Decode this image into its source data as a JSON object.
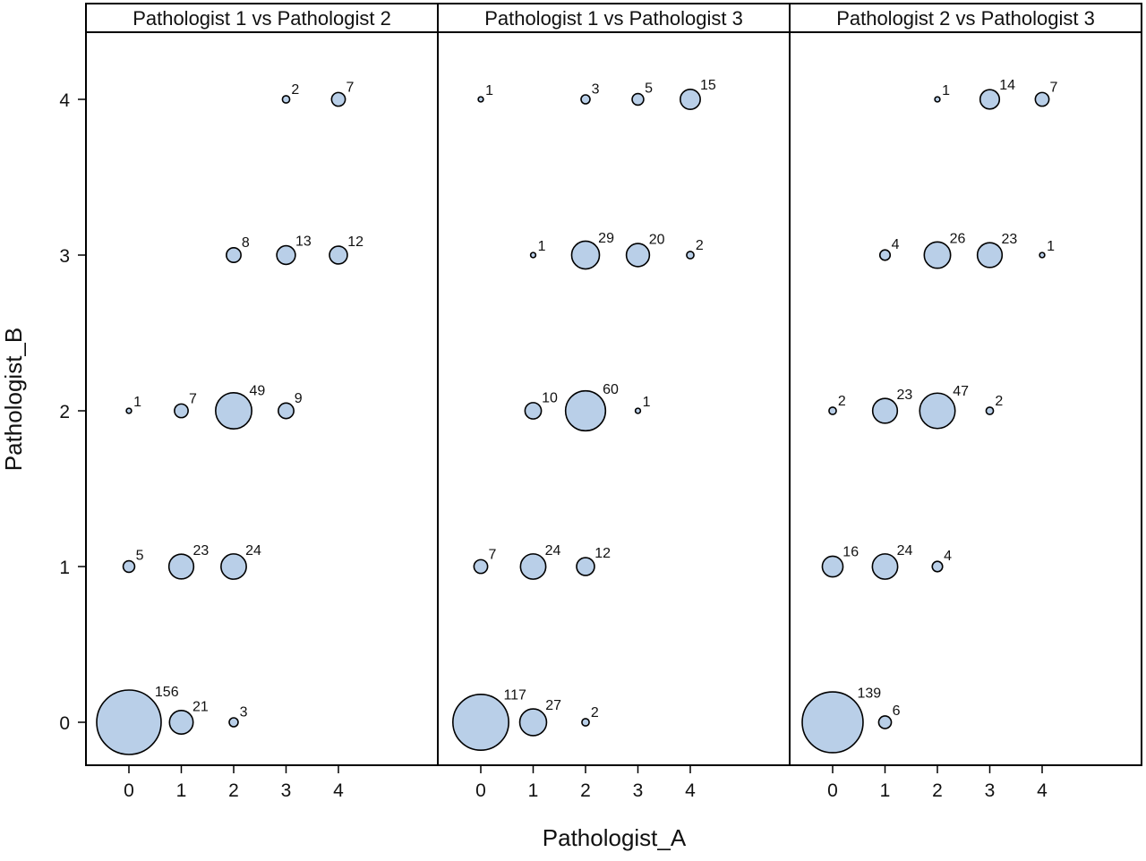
{
  "chart_data": {
    "type": "scatter",
    "xlabel": "Pathologist_A",
    "ylabel": "Pathologist_B",
    "xticks": [
      0,
      1,
      2,
      3,
      4
    ],
    "yticks": [
      0,
      1,
      2,
      3,
      4
    ],
    "xlim": [
      -0.8,
      5.8
    ],
    "ylim": [
      -0.27,
      4.42
    ],
    "bubble_fill": "#b9cfe8",
    "bubble_stroke": "#000000",
    "panels": [
      {
        "title": "Pathologist 1 vs Pathologist 2",
        "points": [
          {
            "x": 3,
            "y": 4,
            "n": 2
          },
          {
            "x": 4,
            "y": 4,
            "n": 7
          },
          {
            "x": 2,
            "y": 3,
            "n": 8
          },
          {
            "x": 3,
            "y": 3,
            "n": 13
          },
          {
            "x": 4,
            "y": 3,
            "n": 12
          },
          {
            "x": 0,
            "y": 2,
            "n": 1
          },
          {
            "x": 1,
            "y": 2,
            "n": 7
          },
          {
            "x": 2,
            "y": 2,
            "n": 49
          },
          {
            "x": 3,
            "y": 2,
            "n": 9
          },
          {
            "x": 0,
            "y": 1,
            "n": 5
          },
          {
            "x": 1,
            "y": 1,
            "n": 23
          },
          {
            "x": 2,
            "y": 1,
            "n": 24
          },
          {
            "x": 0,
            "y": 0,
            "n": 156
          },
          {
            "x": 1,
            "y": 0,
            "n": 21
          },
          {
            "x": 2,
            "y": 0,
            "n": 3
          }
        ]
      },
      {
        "title": "Pathologist 1 vs Pathologist 3",
        "points": [
          {
            "x": 0,
            "y": 4,
            "n": 1
          },
          {
            "x": 2,
            "y": 4,
            "n": 3
          },
          {
            "x": 3,
            "y": 4,
            "n": 5
          },
          {
            "x": 4,
            "y": 4,
            "n": 15
          },
          {
            "x": 1,
            "y": 3,
            "n": 1
          },
          {
            "x": 2,
            "y": 3,
            "n": 29
          },
          {
            "x": 3,
            "y": 3,
            "n": 20
          },
          {
            "x": 4,
            "y": 3,
            "n": 2
          },
          {
            "x": 1,
            "y": 2,
            "n": 10
          },
          {
            "x": 2,
            "y": 2,
            "n": 60
          },
          {
            "x": 3,
            "y": 2,
            "n": 1
          },
          {
            "x": 0,
            "y": 1,
            "n": 7
          },
          {
            "x": 1,
            "y": 1,
            "n": 24
          },
          {
            "x": 2,
            "y": 1,
            "n": 12
          },
          {
            "x": 0,
            "y": 0,
            "n": 117
          },
          {
            "x": 1,
            "y": 0,
            "n": 27
          },
          {
            "x": 2,
            "y": 0,
            "n": 2
          }
        ]
      },
      {
        "title": "Pathologist 2 vs Pathologist 3",
        "points": [
          {
            "x": 2,
            "y": 4,
            "n": 1
          },
          {
            "x": 3,
            "y": 4,
            "n": 14
          },
          {
            "x": 4,
            "y": 4,
            "n": 7
          },
          {
            "x": 1,
            "y": 3,
            "n": 4
          },
          {
            "x": 2,
            "y": 3,
            "n": 26
          },
          {
            "x": 3,
            "y": 3,
            "n": 23
          },
          {
            "x": 4,
            "y": 3,
            "n": 1
          },
          {
            "x": 0,
            "y": 2,
            "n": 2
          },
          {
            "x": 1,
            "y": 2,
            "n": 23
          },
          {
            "x": 2,
            "y": 2,
            "n": 47
          },
          {
            "x": 3,
            "y": 2,
            "n": 2
          },
          {
            "x": 0,
            "y": 1,
            "n": 16
          },
          {
            "x": 1,
            "y": 1,
            "n": 24
          },
          {
            "x": 2,
            "y": 1,
            "n": 4
          },
          {
            "x": 0,
            "y": 0,
            "n": 139
          },
          {
            "x": 1,
            "y": 0,
            "n": 6
          }
        ]
      }
    ]
  }
}
